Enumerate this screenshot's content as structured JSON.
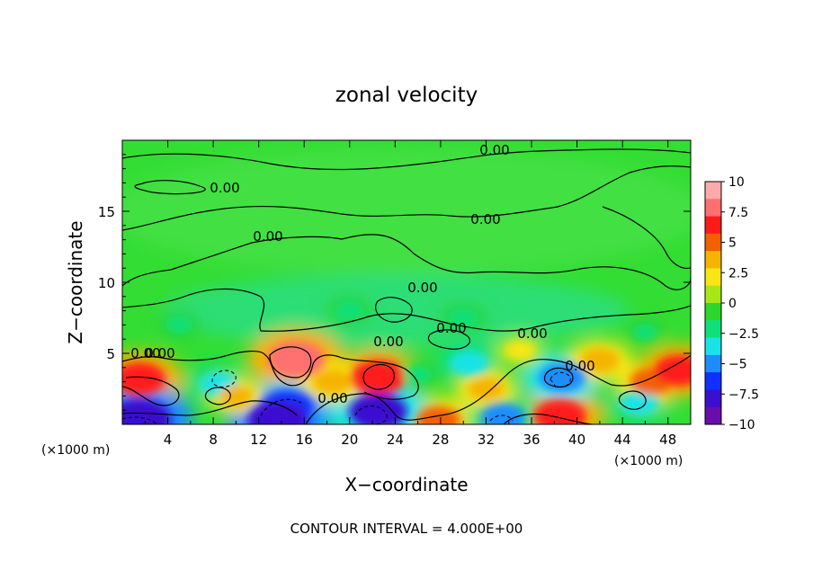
{
  "chart_data": {
    "type": "heatmap",
    "title": "zonal velocity",
    "xlabel": "X−coordinate",
    "ylabel": "Z−coordinate",
    "x_unit_left": "(×1000 m)",
    "y_unit": "(×1000 m)",
    "footer": "CONTOUR INTERVAL = 4.000E+00",
    "xlim": [
      0,
      50
    ],
    "ylim": [
      0,
      20
    ],
    "x_ticks": [
      "4",
      "8",
      "12",
      "16",
      "20",
      "24",
      "28",
      "32",
      "36",
      "40",
      "44",
      "48"
    ],
    "y_ticks": [
      "5",
      "10",
      "15"
    ],
    "colorbar": {
      "range": [
        -10,
        10
      ],
      "ticks": [
        "10",
        "7.5",
        "5",
        "2.5",
        "0",
        "−2.5",
        "−5",
        "−7.5",
        "−10"
      ],
      "colors": [
        "#6a0dad",
        "#3a0fd0",
        "#1030ff",
        "#1e8cff",
        "#19e3e8",
        "#10e07a",
        "#2dd62d",
        "#a8e617",
        "#f7e614",
        "#f5b400",
        "#f26000",
        "#ff1a1a",
        "#ff6f6f",
        "#ffaaaa"
      ]
    },
    "contour_labels": [
      "0.00",
      "0.00",
      "0.00",
      "0.00",
      "0.00",
      "0.00",
      "0.00",
      "0.00",
      "0.00",
      "0.00",
      "0.00",
      "0.00"
    ],
    "features": [
      {
        "x": 1.5,
        "z": 3.2,
        "value": 6.5
      },
      {
        "x": 15.3,
        "z": 4.6,
        "value": 7.5
      },
      {
        "x": 22.5,
        "z": 3.3,
        "value": 7.0
      },
      {
        "x": 38.5,
        "z": 0.6,
        "value": 6.5
      },
      {
        "x": 27.8,
        "z": 0.3,
        "value": 5.0
      },
      {
        "x": 22.5,
        "z": 0.9,
        "value": -7.5
      },
      {
        "x": 14.5,
        "z": 1.2,
        "value": -6.5
      },
      {
        "x": 13.7,
        "z": 0.3,
        "value": -8.0
      },
      {
        "x": 38.7,
        "z": 3.3,
        "value": -5.5
      },
      {
        "x": 33.5,
        "z": 0.5,
        "value": -5.0
      },
      {
        "x": 8.5,
        "z": 2.8,
        "value": -4.0
      },
      {
        "x": 30.5,
        "z": 4.3,
        "value": -4.0
      },
      {
        "x": 1.5,
        "z": 0.4,
        "value": -8.5
      },
      {
        "x": 45.5,
        "z": 1.5,
        "value": -4.0
      },
      {
        "x": 46.5,
        "z": 3.0,
        "value": 4.5
      },
      {
        "x": 49.0,
        "z": 3.8,
        "value": 6.0
      },
      {
        "x": 18.5,
        "z": 3.0,
        "value": 4.0
      },
      {
        "x": 42.0,
        "z": 4.5,
        "value": 4.0
      },
      {
        "x": 32.0,
        "z": 2.5,
        "value": 3.5
      },
      {
        "x": 20.0,
        "z": 8.0,
        "value": -2.5
      },
      {
        "x": 30.0,
        "z": 7.5,
        "value": -2.5
      },
      {
        "x": 5.0,
        "z": 7.0,
        "value": -2.0
      },
      {
        "x": 46.0,
        "z": 6.5,
        "value": -1.5
      },
      {
        "x": 35.0,
        "z": 5.2,
        "value": 2.5
      },
      {
        "x": 10.0,
        "z": 2.0,
        "value": 3.0
      },
      {
        "x": 26.0,
        "z": 3.5,
        "value": -2.0
      }
    ]
  }
}
